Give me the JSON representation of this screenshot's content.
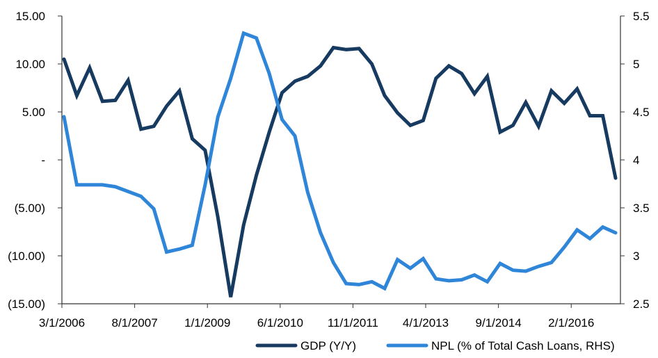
{
  "chart_data": {
    "type": "line",
    "x_labels": [
      "3/1/2006",
      "8/1/2007",
      "1/1/2009",
      "6/1/2010",
      "11/1/2011",
      "4/1/2013",
      "9/1/2014",
      "2/1/2016"
    ],
    "left_axis": {
      "ylim": [
        -15,
        15
      ],
      "tick_labels": [
        "15.00",
        "10.00",
        "5.00",
        "-",
        "(5.00)",
        "(10.00)",
        "(15.00)"
      ]
    },
    "right_axis": {
      "ylim": [
        2.5,
        5.5
      ],
      "tick_labels": [
        "5.5",
        "5",
        "4.5",
        "4",
        "3.5",
        "3",
        "2.5"
      ]
    },
    "series": [
      {
        "name": "GDP (Y/Y)",
        "axis": "left",
        "color": "#173a60",
        "values": [
          10.5,
          6.7,
          9.6,
          6.1,
          6.2,
          8.3,
          3.2,
          3.5,
          5.6,
          7.2,
          2.2,
          1.0,
          -6.0,
          -14.3,
          -6.8,
          -1.6,
          2.9,
          7.0,
          8.2,
          8.7,
          9.8,
          11.7,
          11.5,
          11.6,
          10.0,
          6.7,
          4.9,
          3.6,
          4.1,
          8.5,
          9.8,
          9.0,
          6.9,
          8.7,
          2.9,
          3.6,
          6.0,
          3.5,
          7.2,
          5.9,
          7.4,
          4.6,
          4.6,
          -1.9
        ]
      },
      {
        "name": "NPL (% of Total Cash Loans, RHS)",
        "axis": "right",
        "color": "#2f86d8",
        "values": [
          4.45,
          3.74,
          3.74,
          3.74,
          3.72,
          3.67,
          3.62,
          3.49,
          3.04,
          3.07,
          3.11,
          3.74,
          4.45,
          4.85,
          5.32,
          5.27,
          4.9,
          4.42,
          4.25,
          3.66,
          3.24,
          2.93,
          2.71,
          2.7,
          2.73,
          2.66,
          2.96,
          2.87,
          2.97,
          2.76,
          2.74,
          2.75,
          2.8,
          2.73,
          2.92,
          2.85,
          2.84,
          2.89,
          2.93,
          3.09,
          3.27,
          3.18,
          3.3,
          3.24
        ]
      }
    ]
  }
}
